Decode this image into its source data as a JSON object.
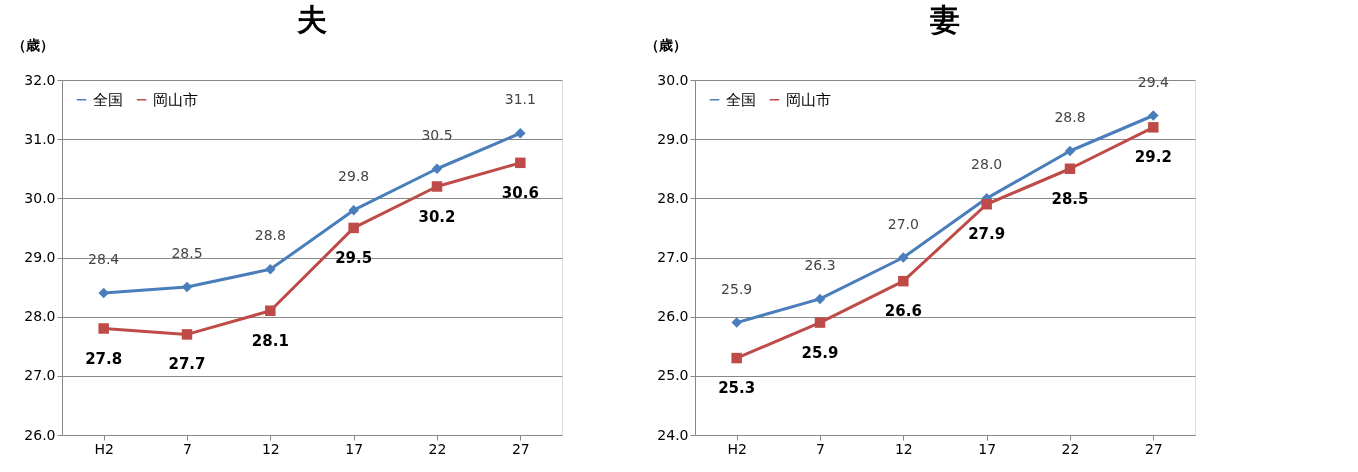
{
  "chart_data": [
    {
      "type": "line",
      "title": "夫",
      "ylabel": "（歳）",
      "categories": [
        "H2",
        "7",
        "12",
        "17",
        "22",
        "27"
      ],
      "series": [
        {
          "name": "全国",
          "color": "#4a7ebb",
          "marker": "diamond",
          "values": [
            28.4,
            28.5,
            28.8,
            29.8,
            30.5,
            31.1
          ],
          "value_labels": [
            "28.4",
            "28.5",
            "28.8",
            "29.8",
            "30.5",
            "31.1"
          ]
        },
        {
          "name": "岡山市",
          "color": "#be4b48",
          "marker": "square",
          "values": [
            27.8,
            27.7,
            28.1,
            29.5,
            30.2,
            30.6
          ],
          "value_labels": [
            "27.8",
            "27.7",
            "28.1",
            "29.5",
            "30.2",
            "30.6"
          ]
        }
      ],
      "ylim": [
        26,
        32
      ],
      "yticks": [
        {
          "value": 26,
          "label": "26.0"
        },
        {
          "value": 27,
          "label": "27.0"
        },
        {
          "value": 28,
          "label": "28.0"
        },
        {
          "value": 29,
          "label": "29.0"
        },
        {
          "value": 30,
          "label": "30.0"
        },
        {
          "value": 31,
          "label": "31.0"
        },
        {
          "value": 32,
          "label": "32.0"
        }
      ],
      "grid": "y",
      "legend": "top left"
    },
    {
      "type": "line",
      "title": "妻",
      "ylabel": "（歳）",
      "categories": [
        "H2",
        "7",
        "12",
        "17",
        "22",
        "27"
      ],
      "series": [
        {
          "name": "全国",
          "color": "#4a7ebb",
          "marker": "diamond",
          "values": [
            25.9,
            26.3,
            27.0,
            28.0,
            28.8,
            29.4
          ],
          "value_labels": [
            "25.9",
            "26.3",
            "27.0",
            "28.0",
            "28.8",
            "29.4"
          ]
        },
        {
          "name": "岡山市",
          "color": "#be4b48",
          "marker": "square",
          "values": [
            25.3,
            25.9,
            26.6,
            27.9,
            28.5,
            29.2
          ],
          "value_labels": [
            "25.3",
            "25.9",
            "26.6",
            "27.9",
            "28.5",
            "29.2"
          ]
        }
      ],
      "ylim": [
        24,
        30
      ],
      "yticks": [
        {
          "value": 24,
          "label": "24.0"
        },
        {
          "value": 25,
          "label": "25.0"
        },
        {
          "value": 26,
          "label": "26.0"
        },
        {
          "value": 27,
          "label": "27.0"
        },
        {
          "value": 28,
          "label": "28.0"
        },
        {
          "value": 29,
          "label": "29.0"
        },
        {
          "value": 30,
          "label": "30.0"
        }
      ],
      "grid": "y",
      "legend": "top left"
    }
  ]
}
